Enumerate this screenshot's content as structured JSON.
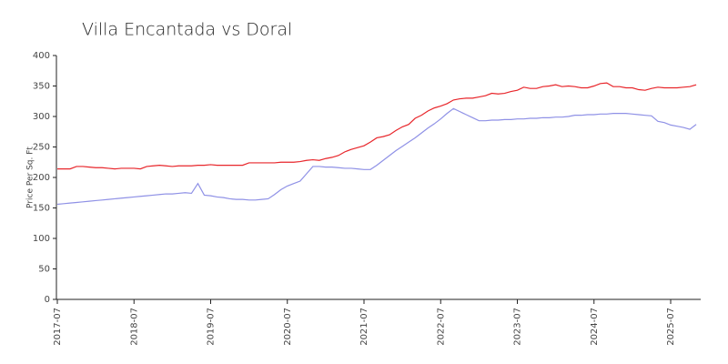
{
  "chart_data": {
    "type": "line",
    "title": "Villa Encantada vs Doral",
    "y_label": "Price Per Sq. Ft",
    "x": [
      "2017-07",
      "2017-08",
      "2017-09",
      "2017-10",
      "2017-11",
      "2017-12",
      "2018-01",
      "2018-02",
      "2018-03",
      "2018-04",
      "2018-05",
      "2018-06",
      "2018-07",
      "2018-08",
      "2018-09",
      "2018-10",
      "2018-11",
      "2018-12",
      "2019-01",
      "2019-02",
      "2019-03",
      "2019-04",
      "2019-05",
      "2019-06",
      "2019-07",
      "2019-08",
      "2019-09",
      "2019-10",
      "2019-11",
      "2019-12",
      "2020-01",
      "2020-02",
      "2020-03",
      "2020-04",
      "2020-05",
      "2020-06",
      "2020-07",
      "2020-08",
      "2020-09",
      "2020-10",
      "2020-11",
      "2020-12",
      "2021-01",
      "2021-02",
      "2021-03",
      "2021-04",
      "2021-05",
      "2021-06",
      "2021-07",
      "2021-08",
      "2021-09",
      "2021-10",
      "2021-11",
      "2021-12",
      "2022-01",
      "2022-02",
      "2022-03",
      "2022-04",
      "2022-05",
      "2022-06",
      "2022-07",
      "2022-08",
      "2022-09",
      "2022-10",
      "2022-11",
      "2022-12",
      "2023-01",
      "2023-02",
      "2023-03",
      "2023-04",
      "2023-05",
      "2023-06",
      "2023-07",
      "2023-08",
      "2023-09",
      "2023-10",
      "2023-11",
      "2023-12",
      "2024-01",
      "2024-02",
      "2024-03",
      "2024-04",
      "2024-05",
      "2024-06",
      "2024-07",
      "2024-08",
      "2024-09",
      "2024-10",
      "2024-11",
      "2024-12",
      "2025-01",
      "2025-02",
      "2025-03",
      "2025-04",
      "2025-05",
      "2025-06",
      "2025-07",
      "2025-08",
      "2025-09",
      "2025-10",
      "2025-11"
    ],
    "series": [
      {
        "color": "#e8262b",
        "values": [
          214,
          214,
          214,
          218,
          218,
          217,
          216,
          216,
          215,
          214,
          215,
          215,
          215,
          214,
          218,
          219,
          220,
          219,
          218,
          219,
          219,
          219,
          220,
          220,
          221,
          220,
          220,
          220,
          220,
          220,
          224,
          224,
          224,
          224,
          224,
          225,
          225,
          225,
          226,
          228,
          229,
          228,
          231,
          233,
          236,
          242,
          246,
          249,
          252,
          258,
          265,
          267,
          270,
          277,
          283,
          287,
          297,
          302,
          309,
          314,
          317,
          321,
          327,
          329,
          330,
          330,
          332,
          334,
          338,
          337,
          338,
          341,
          343,
          348,
          346,
          346,
          349,
          350,
          352,
          349,
          350,
          349,
          347,
          347,
          350,
          354,
          355,
          349,
          349,
          347,
          347,
          344,
          343,
          346,
          348,
          347,
          347,
          347,
          348,
          349,
          352
        ]
      },
      {
        "color": "#8f91e6",
        "values": [
          156,
          157,
          158,
          159,
          160,
          161,
          162,
          163,
          164,
          165,
          166,
          167,
          168,
          169,
          170,
          171,
          172,
          173,
          173,
          174,
          175,
          174,
          190,
          171,
          170,
          168,
          167,
          165,
          164,
          164,
          163,
          163,
          164,
          165,
          172,
          180,
          186,
          190,
          194,
          206,
          218,
          218,
          217,
          217,
          216,
          215,
          215,
          214,
          213,
          213,
          220,
          228,
          236,
          244,
          251,
          258,
          265,
          273,
          281,
          288,
          296,
          305,
          313,
          308,
          303,
          298,
          293,
          293,
          294,
          294,
          295,
          295,
          296,
          296,
          297,
          297,
          298,
          298,
          299,
          299,
          300,
          302,
          302,
          303,
          303,
          304,
          304,
          305,
          305,
          305,
          304,
          303,
          302,
          301,
          292,
          290,
          286,
          284,
          282,
          279,
          287
        ]
      }
    ],
    "xticks": [
      "2017-07",
      "2018-07",
      "2019-07",
      "2020-07",
      "2021-07",
      "2022-07",
      "2023-07",
      "2024-07",
      "2025-07"
    ],
    "ylim": [
      0,
      400
    ],
    "yticks": [
      0,
      50,
      100,
      150,
      200,
      250,
      300,
      350,
      400
    ],
    "grid": false
  }
}
